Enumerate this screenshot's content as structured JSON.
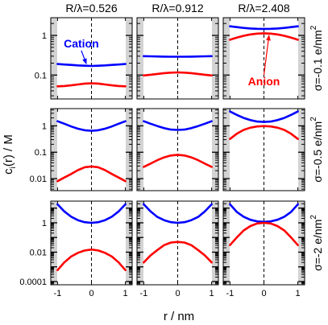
{
  "chart_data": {
    "type": "line",
    "ylabel": "c",
    "ylabel_subscript": "i",
    "ylabel_suffix": "(r) / M",
    "xlabel": "r / nm",
    "xlim": [
      -1.2,
      1.2
    ],
    "x_ticks": [
      -1,
      0,
      1
    ],
    "x_tick_labels": [
      "-1",
      "0",
      "1"
    ],
    "y_scale": "log",
    "columns": [
      {
        "title": "R/λ=0.526"
      },
      {
        "title": "R/λ=0.912"
      },
      {
        "title": "R/λ=2.408"
      }
    ],
    "rows": [
      {
        "label": "σ=-0.1 e/nm",
        "label_superscript": "2",
        "ylim": [
          0.025,
          2.8
        ],
        "y_ticks": [
          0.1,
          1
        ],
        "y_tick_labels": [
          "0.1",
          "1"
        ],
        "panels": [
          {
            "x": [
              -1,
              -0.8,
              -0.6,
              -0.4,
              -0.2,
              0,
              0.2,
              0.4,
              0.6,
              0.8,
              1
            ],
            "series": [
              {
                "name": "Cation",
                "color": "#0000ff",
                "values": [
                  0.19,
                  0.185,
                  0.18,
                  0.175,
                  0.172,
                  0.17,
                  0.172,
                  0.175,
                  0.18,
                  0.185,
                  0.19
                ]
              },
              {
                "name": "Anion",
                "color": "#ff0000",
                "values": [
                  0.052,
                  0.053,
                  0.055,
                  0.058,
                  0.061,
                  0.062,
                  0.061,
                  0.058,
                  0.055,
                  0.053,
                  0.052
                ]
              }
            ]
          },
          {
            "x": [
              -1,
              -0.8,
              -0.6,
              -0.4,
              -0.2,
              0,
              0.2,
              0.4,
              0.6,
              0.8,
              1
            ],
            "series": [
              {
                "name": "Cation",
                "color": "#0000ff",
                "values": [
                  0.3,
                  0.298,
                  0.295,
                  0.292,
                  0.29,
                  0.29,
                  0.29,
                  0.292,
                  0.295,
                  0.298,
                  0.3
                ]
              },
              {
                "name": "Anion",
                "color": "#ff0000",
                "values": [
                  0.098,
                  0.102,
                  0.107,
                  0.112,
                  0.115,
                  0.117,
                  0.115,
                  0.112,
                  0.107,
                  0.102,
                  0.098
                ]
              }
            ]
          },
          {
            "x": [
              -1,
              -0.8,
              -0.6,
              -0.4,
              -0.2,
              0,
              0.2,
              0.4,
              0.6,
              0.8,
              1
            ],
            "series": [
              {
                "name": "Cation",
                "color": "#0000ff",
                "values": [
                  1.7,
                  1.62,
                  1.55,
                  1.5,
                  1.47,
                  1.46,
                  1.47,
                  1.5,
                  1.55,
                  1.62,
                  1.7
                ]
              },
              {
                "name": "Anion",
                "color": "#ff0000",
                "values": [
                  0.78,
                  0.88,
                  0.98,
                  1.06,
                  1.11,
                  1.13,
                  1.11,
                  1.06,
                  0.98,
                  0.88,
                  0.78
                ]
              }
            ]
          }
        ]
      },
      {
        "label": "σ=-0.5 e/nm",
        "label_superscript": "2",
        "ylim": [
          0.0035,
          4.5
        ],
        "y_ticks": [
          0.01,
          0.1,
          1
        ],
        "y_tick_labels": [
          "0.01",
          "0.1",
          "1"
        ],
        "panels": [
          {
            "x": [
              -1,
              -0.8,
              -0.6,
              -0.4,
              -0.2,
              0,
              0.2,
              0.4,
              0.6,
              0.8,
              1
            ],
            "series": [
              {
                "name": "Cation",
                "color": "#0000ff",
                "values": [
                  1.5,
                  1.2,
                  0.95,
                  0.78,
                  0.68,
                  0.65,
                  0.68,
                  0.78,
                  0.95,
                  1.2,
                  1.5
                ]
              },
              {
                "name": "Anion",
                "color": "#ff0000",
                "values": [
                  0.008,
                  0.011,
                  0.015,
                  0.021,
                  0.027,
                  0.029,
                  0.027,
                  0.021,
                  0.015,
                  0.011,
                  0.008
                ]
              }
            ]
          },
          {
            "x": [
              -1,
              -0.8,
              -0.6,
              -0.4,
              -0.2,
              0,
              0.2,
              0.4,
              0.6,
              0.8,
              1
            ],
            "series": [
              {
                "name": "Cation",
                "color": "#0000ff",
                "values": [
                  1.5,
                  1.2,
                  0.98,
                  0.82,
                  0.72,
                  0.7,
                  0.72,
                  0.82,
                  0.98,
                  1.2,
                  1.5
                ]
              },
              {
                "name": "Anion",
                "color": "#ff0000",
                "values": [
                  0.028,
                  0.037,
                  0.05,
                  0.064,
                  0.075,
                  0.08,
                  0.075,
                  0.064,
                  0.05,
                  0.037,
                  0.028
                ]
              }
            ]
          },
          {
            "x": [
              -1,
              -0.8,
              -0.6,
              -0.4,
              -0.2,
              0,
              0.2,
              0.4,
              0.6,
              0.8,
              1
            ],
            "series": [
              {
                "name": "Cation",
                "color": "#0000ff",
                "values": [
                  3.5,
                  2.6,
                  2.0,
                  1.65,
                  1.45,
                  1.4,
                  1.45,
                  1.65,
                  2.0,
                  2.6,
                  3.5
                ]
              },
              {
                "name": "Anion",
                "color": "#ff0000",
                "values": [
                  0.32,
                  0.5,
                  0.7,
                  0.85,
                  0.95,
                  0.98,
                  0.95,
                  0.85,
                  0.7,
                  0.5,
                  0.32
                ]
              }
            ]
          }
        ]
      },
      {
        "label": "σ=-2 e/nm",
        "label_superscript": "2",
        "ylim": [
          6e-05,
          30
        ],
        "y_ticks": [
          0.0001,
          0.01,
          1
        ],
        "y_tick_labels": [
          "0.0001",
          "0.01",
          "1"
        ],
        "panels": [
          {
            "x": [
              -1,
              -0.8,
              -0.6,
              -0.4,
              -0.2,
              0,
              0.2,
              0.4,
              0.6,
              0.8,
              1
            ],
            "series": [
              {
                "name": "Cation",
                "color": "#0000ff",
                "values": [
                  18,
                  6,
                  2.6,
                  1.5,
                  1.1,
                  1.0,
                  1.1,
                  1.5,
                  2.6,
                  6,
                  18
                ]
              },
              {
                "name": "Anion",
                "color": "#ff0000",
                "values": [
                  0.0006,
                  0.002,
                  0.005,
                  0.009,
                  0.013,
                  0.015,
                  0.013,
                  0.009,
                  0.005,
                  0.002,
                  0.0006
                ]
              }
            ]
          },
          {
            "x": [
              -1,
              -0.8,
              -0.6,
              -0.4,
              -0.2,
              0,
              0.2,
              0.4,
              0.6,
              0.8,
              1
            ],
            "series": [
              {
                "name": "Cation",
                "color": "#0000ff",
                "values": [
                  18,
                  6,
                  2.5,
                  1.5,
                  1.1,
                  1.0,
                  1.1,
                  1.5,
                  2.5,
                  6,
                  18
                ]
              },
              {
                "name": "Anion",
                "color": "#ff0000",
                "values": [
                  0.002,
                  0.006,
                  0.014,
                  0.03,
                  0.045,
                  0.05,
                  0.045,
                  0.03,
                  0.014,
                  0.006,
                  0.002
                ]
              }
            ]
          },
          {
            "x": [
              -1,
              -0.8,
              -0.6,
              -0.4,
              -0.2,
              0,
              0.2,
              0.4,
              0.6,
              0.8,
              1
            ],
            "series": [
              {
                "name": "Cation",
                "color": "#0000ff",
                "values": [
                  18,
                  5.5,
                  2.6,
                  1.6,
                  1.25,
                  1.15,
                  1.25,
                  1.6,
                  2.6,
                  5.5,
                  18
                ]
              },
              {
                "name": "Anion",
                "color": "#ff0000",
                "values": [
                  0.03,
                  0.1,
                  0.3,
                  0.6,
                  0.9,
                  1.0,
                  0.9,
                  0.6,
                  0.3,
                  0.1,
                  0.03
                ]
              }
            ]
          }
        ]
      }
    ],
    "annotations": [
      {
        "text": "Cation",
        "color": "#0000ff",
        "row": 0,
        "col": 0,
        "at": [
          -0.3,
          0.5
        ],
        "points_to": [
          -0.15,
          0.175
        ]
      },
      {
        "text": "Anion",
        "color": "#ff0000",
        "row": 0,
        "col": 2,
        "at": [
          0.0,
          0.055
        ],
        "points_to": [
          0.15,
          1.11
        ]
      }
    ]
  }
}
